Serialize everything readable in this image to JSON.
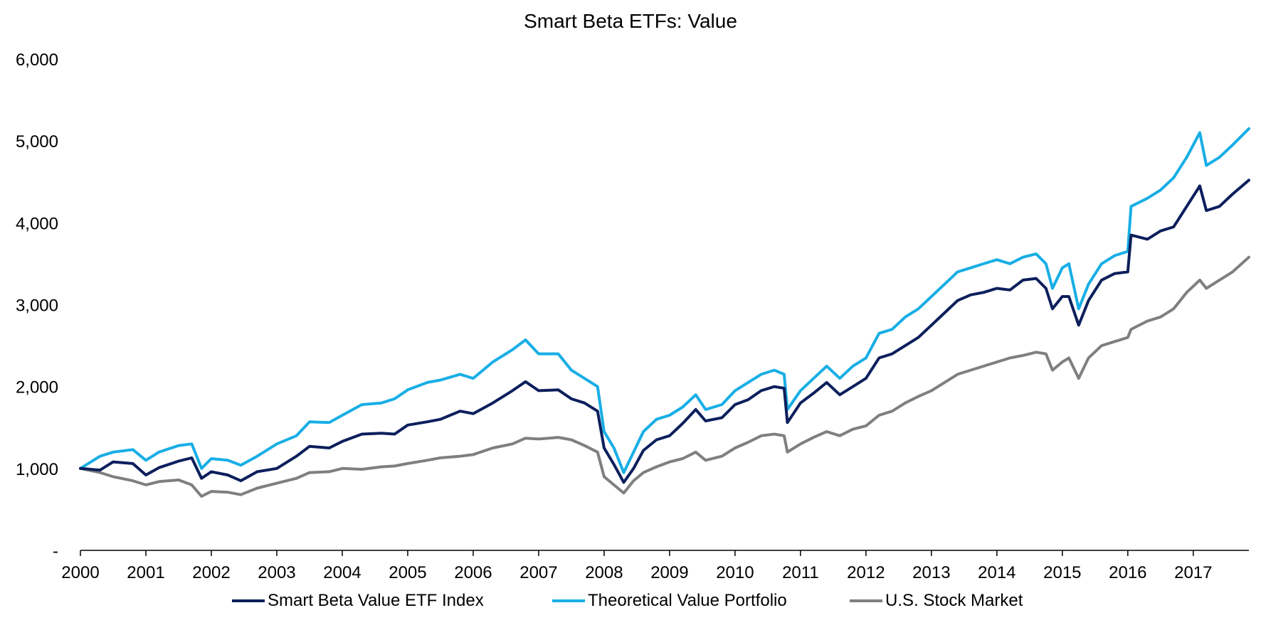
{
  "chart_data": {
    "type": "line",
    "title": "Smart Beta ETFs: Value",
    "xlabel": "",
    "ylabel": "",
    "xlim": [
      2000,
      2017.85
    ],
    "ylim": [
      0,
      6000
    ],
    "yticks": [
      0,
      1000,
      2000,
      3000,
      4000,
      5000,
      6000
    ],
    "ytick_labels": [
      "-",
      "1,000",
      "2,000",
      "3,000",
      "4,000",
      "5,000",
      "6,000"
    ],
    "xticks": [
      2000,
      2001,
      2002,
      2003,
      2004,
      2005,
      2006,
      2007,
      2008,
      2009,
      2010,
      2011,
      2012,
      2013,
      2014,
      2015,
      2016,
      2017
    ],
    "xtick_labels": [
      "2000",
      "2001",
      "2002",
      "2003",
      "2004",
      "2005",
      "2006",
      "2007",
      "2008",
      "2009",
      "2010",
      "2011",
      "2012",
      "2013",
      "2014",
      "2015",
      "2016",
      "2017"
    ],
    "grid": false,
    "legend_position": "bottom",
    "series": [
      {
        "name": "Smart Beta Value ETF Index",
        "color": "#0c1f5c",
        "points": [
          [
            2000.0,
            1000
          ],
          [
            2000.3,
            980
          ],
          [
            2000.5,
            1080
          ],
          [
            2000.8,
            1060
          ],
          [
            2001.0,
            920
          ],
          [
            2001.2,
            1010
          ],
          [
            2001.5,
            1090
          ],
          [
            2001.7,
            1130
          ],
          [
            2001.85,
            880
          ],
          [
            2002.0,
            960
          ],
          [
            2002.25,
            920
          ],
          [
            2002.45,
            850
          ],
          [
            2002.7,
            960
          ],
          [
            2003.0,
            1000
          ],
          [
            2003.3,
            1150
          ],
          [
            2003.5,
            1270
          ],
          [
            2003.8,
            1250
          ],
          [
            2004.0,
            1330
          ],
          [
            2004.3,
            1420
          ],
          [
            2004.6,
            1430
          ],
          [
            2004.8,
            1420
          ],
          [
            2005.0,
            1530
          ],
          [
            2005.3,
            1570
          ],
          [
            2005.5,
            1600
          ],
          [
            2005.8,
            1700
          ],
          [
            2006.0,
            1670
          ],
          [
            2006.3,
            1800
          ],
          [
            2006.6,
            1950
          ],
          [
            2006.8,
            2060
          ],
          [
            2007.0,
            1950
          ],
          [
            2007.3,
            1960
          ],
          [
            2007.5,
            1850
          ],
          [
            2007.7,
            1800
          ],
          [
            2007.9,
            1700
          ],
          [
            2008.0,
            1250
          ],
          [
            2008.15,
            1050
          ],
          [
            2008.3,
            830
          ],
          [
            2008.45,
            1000
          ],
          [
            2008.6,
            1220
          ],
          [
            2008.8,
            1350
          ],
          [
            2009.0,
            1400
          ],
          [
            2009.2,
            1550
          ],
          [
            2009.4,
            1720
          ],
          [
            2009.55,
            1580
          ],
          [
            2009.8,
            1620
          ],
          [
            2010.0,
            1780
          ],
          [
            2010.2,
            1840
          ],
          [
            2010.4,
            1950
          ],
          [
            2010.6,
            2000
          ],
          [
            2010.75,
            1980
          ],
          [
            2010.8,
            1560
          ],
          [
            2011.0,
            1800
          ],
          [
            2011.2,
            1920
          ],
          [
            2011.4,
            2050
          ],
          [
            2011.6,
            1900
          ],
          [
            2011.8,
            2000
          ],
          [
            2012.0,
            2100
          ],
          [
            2012.2,
            2350
          ],
          [
            2012.4,
            2400
          ],
          [
            2012.6,
            2500
          ],
          [
            2012.8,
            2600
          ],
          [
            2013.0,
            2750
          ],
          [
            2013.2,
            2900
          ],
          [
            2013.4,
            3050
          ],
          [
            2013.6,
            3120
          ],
          [
            2013.8,
            3150
          ],
          [
            2014.0,
            3200
          ],
          [
            2014.2,
            3180
          ],
          [
            2014.4,
            3300
          ],
          [
            2014.6,
            3320
          ],
          [
            2014.75,
            3200
          ],
          [
            2014.85,
            2950
          ],
          [
            2015.0,
            3100
          ],
          [
            2015.1,
            3100
          ],
          [
            2015.25,
            2750
          ],
          [
            2015.4,
            3050
          ],
          [
            2015.6,
            3300
          ],
          [
            2015.8,
            3380
          ],
          [
            2016.0,
            3400
          ],
          [
            2016.05,
            3850
          ],
          [
            2016.3,
            3800
          ],
          [
            2016.5,
            3900
          ],
          [
            2016.7,
            3950
          ],
          [
            2016.9,
            4200
          ],
          [
            2017.1,
            4450
          ],
          [
            2017.2,
            4150
          ],
          [
            2017.4,
            4200
          ],
          [
            2017.6,
            4350
          ],
          [
            2017.85,
            4520
          ]
        ]
      },
      {
        "name": "Theoretical Value Portfolio",
        "color": "#18aee6",
        "points": [
          [
            2000.0,
            1000
          ],
          [
            2000.3,
            1150
          ],
          [
            2000.5,
            1200
          ],
          [
            2000.8,
            1230
          ],
          [
            2001.0,
            1100
          ],
          [
            2001.2,
            1200
          ],
          [
            2001.5,
            1280
          ],
          [
            2001.7,
            1300
          ],
          [
            2001.85,
            1000
          ],
          [
            2002.0,
            1120
          ],
          [
            2002.25,
            1100
          ],
          [
            2002.45,
            1040
          ],
          [
            2002.7,
            1150
          ],
          [
            2003.0,
            1300
          ],
          [
            2003.3,
            1400
          ],
          [
            2003.5,
            1570
          ],
          [
            2003.8,
            1560
          ],
          [
            2004.0,
            1650
          ],
          [
            2004.3,
            1780
          ],
          [
            2004.6,
            1800
          ],
          [
            2004.8,
            1850
          ],
          [
            2005.0,
            1960
          ],
          [
            2005.3,
            2050
          ],
          [
            2005.5,
            2080
          ],
          [
            2005.8,
            2150
          ],
          [
            2006.0,
            2100
          ],
          [
            2006.3,
            2300
          ],
          [
            2006.6,
            2450
          ],
          [
            2006.8,
            2570
          ],
          [
            2007.0,
            2400
          ],
          [
            2007.3,
            2400
          ],
          [
            2007.5,
            2200
          ],
          [
            2007.7,
            2100
          ],
          [
            2007.9,
            2000
          ],
          [
            2008.0,
            1450
          ],
          [
            2008.15,
            1250
          ],
          [
            2008.3,
            950
          ],
          [
            2008.45,
            1200
          ],
          [
            2008.6,
            1450
          ],
          [
            2008.8,
            1600
          ],
          [
            2009.0,
            1650
          ],
          [
            2009.2,
            1750
          ],
          [
            2009.4,
            1900
          ],
          [
            2009.55,
            1720
          ],
          [
            2009.8,
            1780
          ],
          [
            2010.0,
            1950
          ],
          [
            2010.2,
            2050
          ],
          [
            2010.4,
            2150
          ],
          [
            2010.6,
            2200
          ],
          [
            2010.75,
            2150
          ],
          [
            2010.8,
            1720
          ],
          [
            2011.0,
            1950
          ],
          [
            2011.2,
            2100
          ],
          [
            2011.4,
            2250
          ],
          [
            2011.6,
            2100
          ],
          [
            2011.8,
            2250
          ],
          [
            2012.0,
            2350
          ],
          [
            2012.2,
            2650
          ],
          [
            2012.4,
            2700
          ],
          [
            2012.6,
            2850
          ],
          [
            2012.8,
            2950
          ],
          [
            2013.0,
            3100
          ],
          [
            2013.2,
            3250
          ],
          [
            2013.4,
            3400
          ],
          [
            2013.6,
            3450
          ],
          [
            2013.8,
            3500
          ],
          [
            2014.0,
            3550
          ],
          [
            2014.2,
            3500
          ],
          [
            2014.4,
            3580
          ],
          [
            2014.6,
            3620
          ],
          [
            2014.75,
            3500
          ],
          [
            2014.85,
            3200
          ],
          [
            2015.0,
            3450
          ],
          [
            2015.1,
            3500
          ],
          [
            2015.25,
            2950
          ],
          [
            2015.4,
            3250
          ],
          [
            2015.6,
            3500
          ],
          [
            2015.8,
            3600
          ],
          [
            2016.0,
            3650
          ],
          [
            2016.05,
            4200
          ],
          [
            2016.3,
            4300
          ],
          [
            2016.5,
            4400
          ],
          [
            2016.7,
            4550
          ],
          [
            2016.9,
            4800
          ],
          [
            2017.1,
            5100
          ],
          [
            2017.2,
            4700
          ],
          [
            2017.4,
            4800
          ],
          [
            2017.6,
            4950
          ],
          [
            2017.85,
            5150
          ]
        ]
      },
      {
        "name": "U.S. Stock Market",
        "color": "#7f7f7f",
        "points": [
          [
            2000.0,
            1000
          ],
          [
            2000.3,
            950
          ],
          [
            2000.5,
            900
          ],
          [
            2000.8,
            850
          ],
          [
            2001.0,
            800
          ],
          [
            2001.2,
            840
          ],
          [
            2001.5,
            860
          ],
          [
            2001.7,
            800
          ],
          [
            2001.85,
            660
          ],
          [
            2002.0,
            720
          ],
          [
            2002.25,
            710
          ],
          [
            2002.45,
            680
          ],
          [
            2002.7,
            760
          ],
          [
            2003.0,
            820
          ],
          [
            2003.3,
            880
          ],
          [
            2003.5,
            950
          ],
          [
            2003.8,
            960
          ],
          [
            2004.0,
            1000
          ],
          [
            2004.3,
            990
          ],
          [
            2004.6,
            1020
          ],
          [
            2004.8,
            1030
          ],
          [
            2005.0,
            1060
          ],
          [
            2005.3,
            1100
          ],
          [
            2005.5,
            1130
          ],
          [
            2005.8,
            1150
          ],
          [
            2006.0,
            1170
          ],
          [
            2006.3,
            1250
          ],
          [
            2006.6,
            1300
          ],
          [
            2006.8,
            1370
          ],
          [
            2007.0,
            1360
          ],
          [
            2007.3,
            1380
          ],
          [
            2007.5,
            1350
          ],
          [
            2007.7,
            1280
          ],
          [
            2007.9,
            1200
          ],
          [
            2008.0,
            900
          ],
          [
            2008.15,
            800
          ],
          [
            2008.3,
            700
          ],
          [
            2008.45,
            850
          ],
          [
            2008.6,
            950
          ],
          [
            2008.8,
            1020
          ],
          [
            2009.0,
            1080
          ],
          [
            2009.2,
            1120
          ],
          [
            2009.4,
            1200
          ],
          [
            2009.55,
            1100
          ],
          [
            2009.8,
            1150
          ],
          [
            2010.0,
            1250
          ],
          [
            2010.2,
            1320
          ],
          [
            2010.4,
            1400
          ],
          [
            2010.6,
            1420
          ],
          [
            2010.75,
            1400
          ],
          [
            2010.8,
            1200
          ],
          [
            2011.0,
            1300
          ],
          [
            2011.2,
            1380
          ],
          [
            2011.4,
            1450
          ],
          [
            2011.6,
            1400
          ],
          [
            2011.8,
            1480
          ],
          [
            2012.0,
            1520
          ],
          [
            2012.2,
            1650
          ],
          [
            2012.4,
            1700
          ],
          [
            2012.6,
            1800
          ],
          [
            2012.8,
            1880
          ],
          [
            2013.0,
            1950
          ],
          [
            2013.2,
            2050
          ],
          [
            2013.4,
            2150
          ],
          [
            2013.6,
            2200
          ],
          [
            2013.8,
            2250
          ],
          [
            2014.0,
            2300
          ],
          [
            2014.2,
            2350
          ],
          [
            2014.4,
            2380
          ],
          [
            2014.6,
            2420
          ],
          [
            2014.75,
            2400
          ],
          [
            2014.85,
            2200
          ],
          [
            2015.0,
            2300
          ],
          [
            2015.1,
            2350
          ],
          [
            2015.25,
            2100
          ],
          [
            2015.4,
            2350
          ],
          [
            2015.6,
            2500
          ],
          [
            2015.8,
            2550
          ],
          [
            2016.0,
            2600
          ],
          [
            2016.05,
            2700
          ],
          [
            2016.3,
            2800
          ],
          [
            2016.5,
            2850
          ],
          [
            2016.7,
            2950
          ],
          [
            2016.9,
            3150
          ],
          [
            2017.1,
            3300
          ],
          [
            2017.2,
            3200
          ],
          [
            2017.4,
            3300
          ],
          [
            2017.6,
            3400
          ],
          [
            2017.85,
            3580
          ]
        ]
      }
    ]
  }
}
